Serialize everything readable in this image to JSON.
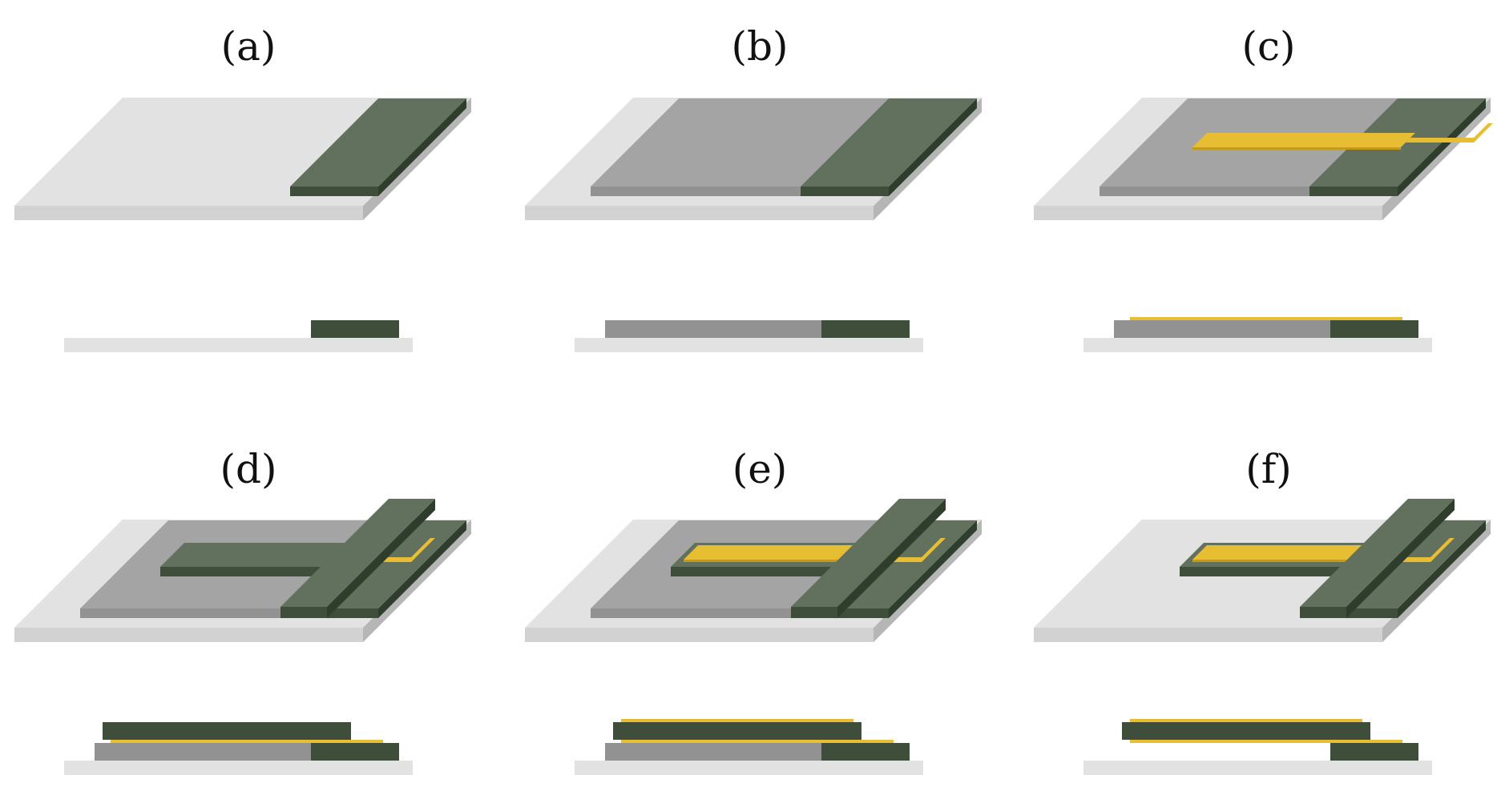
{
  "panels": [
    {
      "id": "a",
      "label": "(a)",
      "layers": [
        "substrate",
        "green-pad"
      ]
    },
    {
      "id": "b",
      "label": "(b)",
      "layers": [
        "substrate",
        "gray-layer",
        "green-pad"
      ]
    },
    {
      "id": "c",
      "label": "(c)",
      "layers": [
        "substrate",
        "gray-layer",
        "green-pad",
        "gold-strip"
      ]
    },
    {
      "id": "d",
      "label": "(d)",
      "layers": [
        "substrate",
        "gray-layer",
        "green-pad",
        "gold-strip",
        "green-cover",
        "green-bar"
      ]
    },
    {
      "id": "e",
      "label": "(e)",
      "layers": [
        "substrate",
        "gray-layer",
        "green-pad",
        "gold-strip",
        "green-cover",
        "green-bar",
        "gold-top"
      ]
    },
    {
      "id": "f",
      "label": "(f)",
      "layers": [
        "substrate",
        "green-pad",
        "gold-strip",
        "green-cover",
        "green-bar",
        "gold-top"
      ]
    }
  ],
  "colors": {
    "substrate_top": "#e2e2e2",
    "substrate_front": "#d2d2d2",
    "substrate_side": "#b6b6b6",
    "gray_top": "#a4a4a4",
    "gray_front": "#929292",
    "green_top": "#61715d",
    "green_front": "#3e4e3b",
    "green_side": "#2f3d2d",
    "gold": "#e6bd33",
    "gold_dark": "#c49a1c",
    "label": "#111111"
  }
}
